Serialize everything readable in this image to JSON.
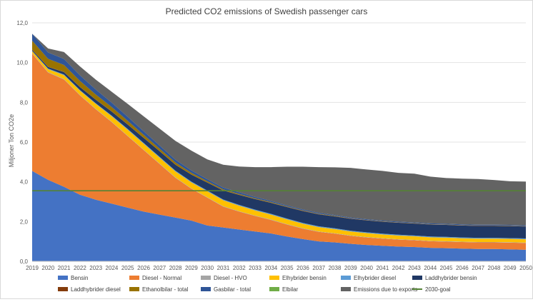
{
  "chart_data": {
    "type": "area",
    "title": "Predicted CO2 emissions of Swedish passenger cars",
    "xlabel": "",
    "ylabel": "Miljoner Ton CO2e",
    "ylim": [
      0,
      12
    ],
    "yticks": [
      "0,0",
      "2,0",
      "4,0",
      "6,0",
      "8,0",
      "10,0",
      "12,0"
    ],
    "x": [
      "2019",
      "2020",
      "2021",
      "2022",
      "2023",
      "2024",
      "2025",
      "2026",
      "2027",
      "2028",
      "2029",
      "2030",
      "2031",
      "2032",
      "2033",
      "2034",
      "2035",
      "2036",
      "2037",
      "2038",
      "2039",
      "2040",
      "2041",
      "2042",
      "2043",
      "2044",
      "2045",
      "2046",
      "2047",
      "2048",
      "2049",
      "2050"
    ],
    "grid": true,
    "legend_position": "bottom",
    "series": [
      {
        "name": "Bensin",
        "color": "#4472c4",
        "values": [
          4.55,
          4.1,
          3.75,
          3.35,
          3.1,
          2.9,
          2.7,
          2.5,
          2.35,
          2.2,
          2.05,
          1.8,
          1.7,
          1.6,
          1.5,
          1.4,
          1.25,
          1.12,
          1.0,
          0.95,
          0.88,
          0.82,
          0.78,
          0.74,
          0.72,
          0.68,
          0.66,
          0.64,
          0.62,
          0.62,
          0.6,
          0.58
        ]
      },
      {
        "name": "Diesel - Normal",
        "color": "#ed7d31",
        "values": [
          5.9,
          5.4,
          5.4,
          5.0,
          4.55,
          4.1,
          3.6,
          3.1,
          2.55,
          2.0,
          1.6,
          1.4,
          1.05,
          0.9,
          0.78,
          0.68,
          0.6,
          0.52,
          0.48,
          0.44,
          0.4,
          0.38,
          0.36,
          0.35,
          0.34,
          0.33,
          0.33,
          0.33,
          0.33,
          0.33,
          0.34,
          0.34
        ]
      },
      {
        "name": "Diesel - HVO",
        "color": "#a5a5a5",
        "values": [
          0.02,
          0.02,
          0.02,
          0.02,
          0.02,
          0.02,
          0.02,
          0.02,
          0.02,
          0.02,
          0.02,
          0.02,
          0.02,
          0.02,
          0.02,
          0.02,
          0.02,
          0.02,
          0.02,
          0.02,
          0.02,
          0.02,
          0.02,
          0.02,
          0.02,
          0.02,
          0.02,
          0.02,
          0.02,
          0.02,
          0.02,
          0.02
        ]
      },
      {
        "name": "Elhybrider bensin",
        "color": "#ffc000",
        "values": [
          0.1,
          0.15,
          0.2,
          0.22,
          0.25,
          0.28,
          0.3,
          0.3,
          0.3,
          0.3,
          0.3,
          0.3,
          0.3,
          0.28,
          0.26,
          0.25,
          0.24,
          0.23,
          0.22,
          0.21,
          0.2,
          0.2,
          0.19,
          0.19,
          0.18,
          0.18,
          0.18,
          0.17,
          0.17,
          0.17,
          0.17,
          0.17
        ]
      },
      {
        "name": "Elhybrider diesel",
        "color": "#5b9bd5",
        "values": [
          0.02,
          0.03,
          0.03,
          0.03,
          0.03,
          0.03,
          0.04,
          0.04,
          0.04,
          0.04,
          0.04,
          0.04,
          0.04,
          0.04,
          0.04,
          0.04,
          0.04,
          0.04,
          0.04,
          0.04,
          0.04,
          0.04,
          0.04,
          0.04,
          0.04,
          0.04,
          0.04,
          0.04,
          0.04,
          0.04,
          0.04,
          0.04
        ]
      },
      {
        "name": "Laddhybrider bensin",
        "color": "#203864",
        "values": [
          0.05,
          0.08,
          0.12,
          0.15,
          0.18,
          0.2,
          0.22,
          0.25,
          0.28,
          0.3,
          0.35,
          0.4,
          0.45,
          0.5,
          0.53,
          0.55,
          0.58,
          0.6,
          0.6,
          0.6,
          0.6,
          0.6,
          0.6,
          0.6,
          0.6,
          0.6,
          0.6,
          0.6,
          0.6,
          0.6,
          0.6,
          0.6
        ]
      },
      {
        "name": "Laddhybrider diesel",
        "color": "#843c0c",
        "values": [
          0.01,
          0.01,
          0.01,
          0.01,
          0.01,
          0.01,
          0.01,
          0.01,
          0.01,
          0.01,
          0.01,
          0.01,
          0.01,
          0.01,
          0.01,
          0.01,
          0.01,
          0.01,
          0.01,
          0.01,
          0.01,
          0.01,
          0.01,
          0.01,
          0.01,
          0.01,
          0.01,
          0.01,
          0.01,
          0.01,
          0.01,
          0.01
        ]
      },
      {
        "name": "Ethanolbilar - total",
        "color": "#997300",
        "values": [
          0.45,
          0.4,
          0.35,
          0.3,
          0.25,
          0.22,
          0.18,
          0.15,
          0.12,
          0.1,
          0.08,
          0.06,
          0.05,
          0.04,
          0.03,
          0.03,
          0.02,
          0.02,
          0.02,
          0.02,
          0.01,
          0.01,
          0.01,
          0.01,
          0.01,
          0.01,
          0.01,
          0.01,
          0.01,
          0.01,
          0.01,
          0.01
        ]
      },
      {
        "name": "Gasbilar - total",
        "color": "#2f5597",
        "values": [
          0.35,
          0.32,
          0.3,
          0.28,
          0.25,
          0.22,
          0.2,
          0.18,
          0.16,
          0.14,
          0.12,
          0.1,
          0.09,
          0.08,
          0.07,
          0.06,
          0.05,
          0.05,
          0.05,
          0.04,
          0.04,
          0.04,
          0.04,
          0.04,
          0.04,
          0.04,
          0.04,
          0.04,
          0.04,
          0.04,
          0.04,
          0.04
        ]
      },
      {
        "name": "Elbilar",
        "color": "#70ad47",
        "values": [
          0,
          0,
          0,
          0,
          0,
          0,
          0,
          0,
          0,
          0,
          0,
          0,
          0,
          0,
          0,
          0,
          0,
          0,
          0,
          0,
          0,
          0,
          0,
          0,
          0,
          0,
          0,
          0,
          0,
          0,
          0,
          0
        ]
      },
      {
        "name": "Emissions due to exports",
        "color": "#636363",
        "values": [
          0,
          0.2,
          0.35,
          0.45,
          0.5,
          0.55,
          0.65,
          0.75,
          0.85,
          0.95,
          1.0,
          1.0,
          1.15,
          1.3,
          1.5,
          1.7,
          1.95,
          2.15,
          2.3,
          2.4,
          2.5,
          2.5,
          2.5,
          2.45,
          2.45,
          2.35,
          2.3,
          2.3,
          2.3,
          2.25,
          2.2,
          2.2
        ]
      }
    ],
    "lines": [
      {
        "name": "2030-goal",
        "color": "#548235",
        "value": 3.55
      }
    ]
  }
}
